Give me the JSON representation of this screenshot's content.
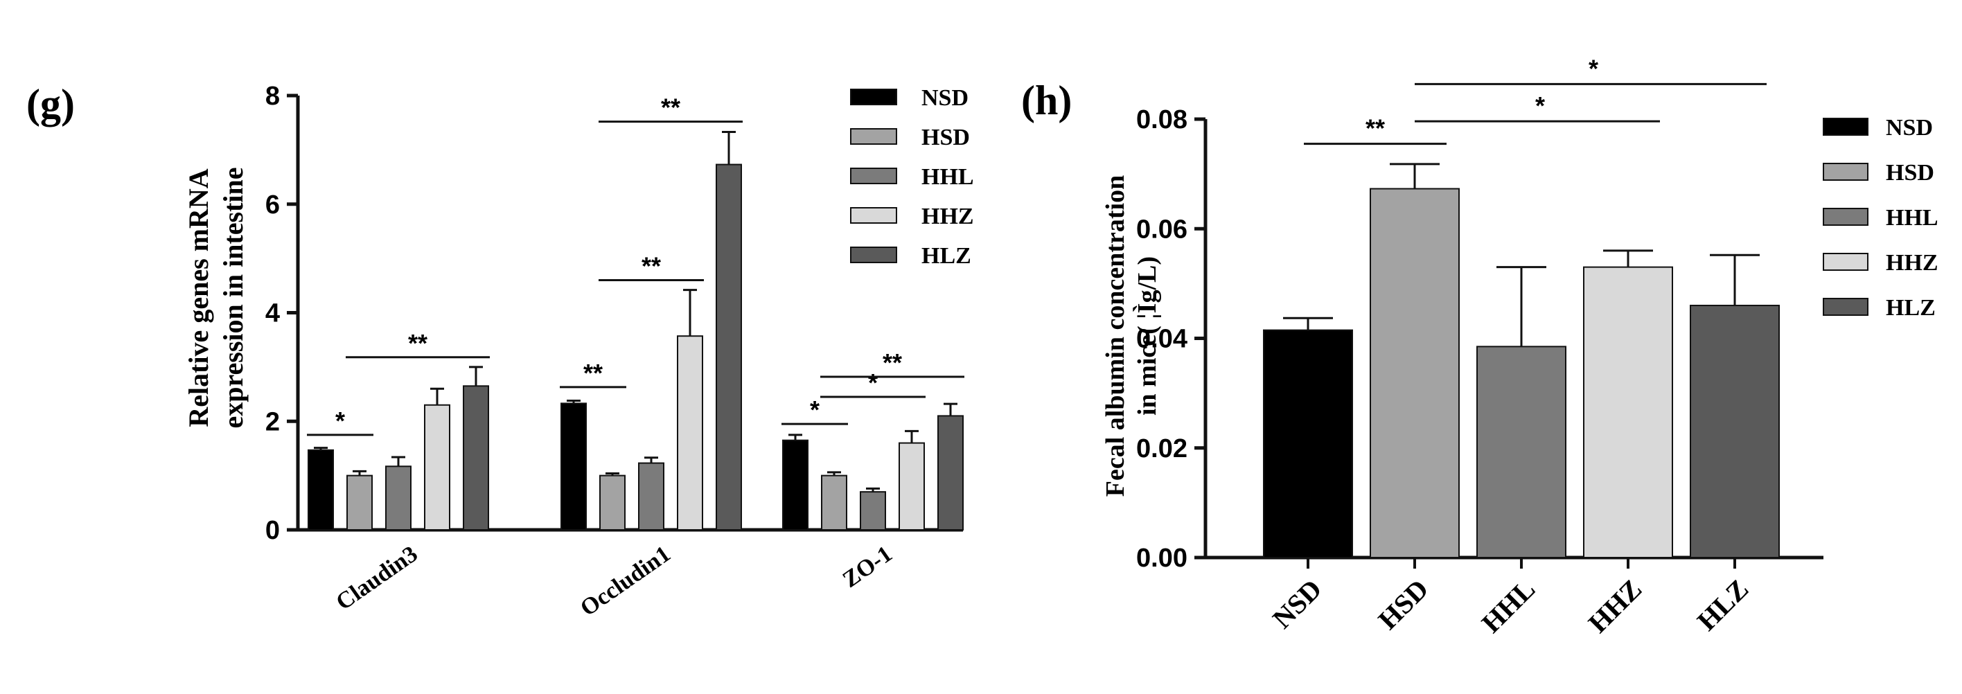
{
  "colors": {
    "NSD": "#000000",
    "HSD": "#a3a3a3",
    "HHL": "#7b7b7b",
    "HHZ": "#d9d9d9",
    "HLZ": "#5a5a5a",
    "axis": "#111111"
  },
  "chart_data": [
    {
      "panel_label": "(g)",
      "type": "bar",
      "title": "",
      "ylabel_lines": [
        "Relative genes mRNA",
        "expression in intestine"
      ],
      "xlabel": "",
      "ylim": [
        0,
        8
      ],
      "yticks": [
        "0",
        "2",
        "4",
        "6",
        "8"
      ],
      "categories": [
        "Claudin3",
        "Occludin1",
        "ZO-1"
      ],
      "legend": [
        "NSD",
        "HSD",
        "HHL",
        "HHZ",
        "HLZ"
      ],
      "series": [
        {
          "name": "NSD",
          "values": [
            1.47,
            2.33,
            1.65
          ],
          "errors": [
            0.04,
            0.05,
            0.1
          ]
        },
        {
          "name": "HSD",
          "values": [
            1.0,
            1.0,
            1.0
          ],
          "errors": [
            0.08,
            0.04,
            0.06
          ]
        },
        {
          "name": "HHL",
          "values": [
            1.17,
            1.23,
            0.7
          ],
          "errors": [
            0.17,
            0.1,
            0.06
          ]
        },
        {
          "name": "HHZ",
          "values": [
            2.3,
            3.57,
            1.6
          ],
          "errors": [
            0.3,
            0.85,
            0.22
          ]
        },
        {
          "name": "HLZ",
          "values": [
            2.65,
            6.73,
            2.1
          ],
          "errors": [
            0.35,
            0.6,
            0.22
          ]
        }
      ],
      "significance": [
        {
          "label": "*",
          "category": 0,
          "from": "NSD",
          "to": "HSD",
          "y": 1.75
        },
        {
          "label": "**",
          "category": 0,
          "from": "HSD",
          "to": "HLZ",
          "y": 3.18
        },
        {
          "label": "**",
          "category": 1,
          "from": "NSD",
          "to": "HSD",
          "y": 2.63
        },
        {
          "label": "**",
          "category": 1,
          "from": "HSD",
          "to": "HHZ",
          "y": 4.6
        },
        {
          "label": "**",
          "category": 1,
          "from": "HSD",
          "to": "HLZ",
          "y": 7.52
        },
        {
          "label": "*",
          "category": 2,
          "from": "NSD",
          "to": "HSD",
          "y": 1.95
        },
        {
          "label": "*",
          "category": 2,
          "from": "HSD",
          "to": "HHZ",
          "y": 2.45
        },
        {
          "label": "**",
          "category": 2,
          "from": "HSD",
          "to": "HLZ",
          "y": 2.82
        }
      ]
    },
    {
      "panel_label": "(h)",
      "type": "bar",
      "title": "",
      "ylabel_lines": [
        "Fecal albumin concentration",
        "in mice( ¦Ìg/L)"
      ],
      "xlabel": "",
      "ylim": [
        0,
        0.08
      ],
      "yticks": [
        "0.00",
        "0.02",
        "0.04",
        "0.06",
        "0.08"
      ],
      "categories": [
        "NSD",
        "HSD",
        "HHL",
        "HHZ",
        "HLZ"
      ],
      "legend": [
        "NSD",
        "HSD",
        "HHL",
        "HHZ",
        "HLZ"
      ],
      "values": [
        0.0415,
        0.0673,
        0.0385,
        0.053,
        0.046
      ],
      "errors": [
        0.0022,
        0.0045,
        0.0145,
        0.003,
        0.0092
      ],
      "significance": [
        {
          "label": "**",
          "from": "NSD",
          "to": "HSD",
          "y": 0.0755
        },
        {
          "label": "*",
          "from": "HSD",
          "to": "HHZ",
          "y": 0.0796
        },
        {
          "label": "*",
          "from": "HSD",
          "to": "HLZ",
          "y": 0.0864
        }
      ]
    }
  ]
}
